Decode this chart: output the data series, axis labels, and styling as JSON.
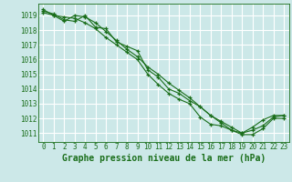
{
  "background_color": "#cce8e8",
  "grid_color": "#ffffff",
  "line_color": "#1a6e1a",
  "marker_color": "#1a6e1a",
  "xlabel": "Graphe pression niveau de la mer (hPa)",
  "xlabel_fontsize": 7,
  "xlim": [
    -0.5,
    23.5
  ],
  "ylim": [
    1010.4,
    1019.8
  ],
  "yticks": [
    1011,
    1012,
    1013,
    1014,
    1015,
    1016,
    1017,
    1018,
    1019
  ],
  "xticks": [
    0,
    1,
    2,
    3,
    4,
    5,
    6,
    7,
    8,
    9,
    10,
    11,
    12,
    13,
    14,
    15,
    16,
    17,
    18,
    19,
    20,
    21,
    22,
    23
  ],
  "series": [
    [
      1019.2,
      1019.0,
      1018.9,
      1018.8,
      1018.5,
      1018.1,
      1017.5,
      1017.0,
      1016.5,
      1016.0,
      1015.0,
      1014.3,
      1013.7,
      1013.3,
      1013.0,
      1012.1,
      1011.6,
      1011.5,
      1011.2,
      1010.9,
      1010.9,
      1011.3,
      1012.0,
      1012.0
    ],
    [
      1019.3,
      1019.1,
      1018.7,
      1018.6,
      1019.0,
      1018.2,
      1018.1,
      1017.2,
      1016.9,
      1016.6,
      1015.3,
      1014.8,
      1014.0,
      1013.7,
      1013.2,
      1012.8,
      1012.2,
      1011.7,
      1011.2,
      1011.0,
      1011.2,
      1011.5,
      1012.1,
      1012.2
    ],
    [
      1019.4,
      1019.0,
      1018.6,
      1019.0,
      1018.9,
      1018.5,
      1017.9,
      1017.3,
      1016.7,
      1016.2,
      1015.5,
      1015.0,
      1014.4,
      1013.9,
      1013.4,
      1012.8,
      1012.2,
      1011.8,
      1011.4,
      1011.0,
      1011.4,
      1011.9,
      1012.2,
      1012.2
    ]
  ]
}
